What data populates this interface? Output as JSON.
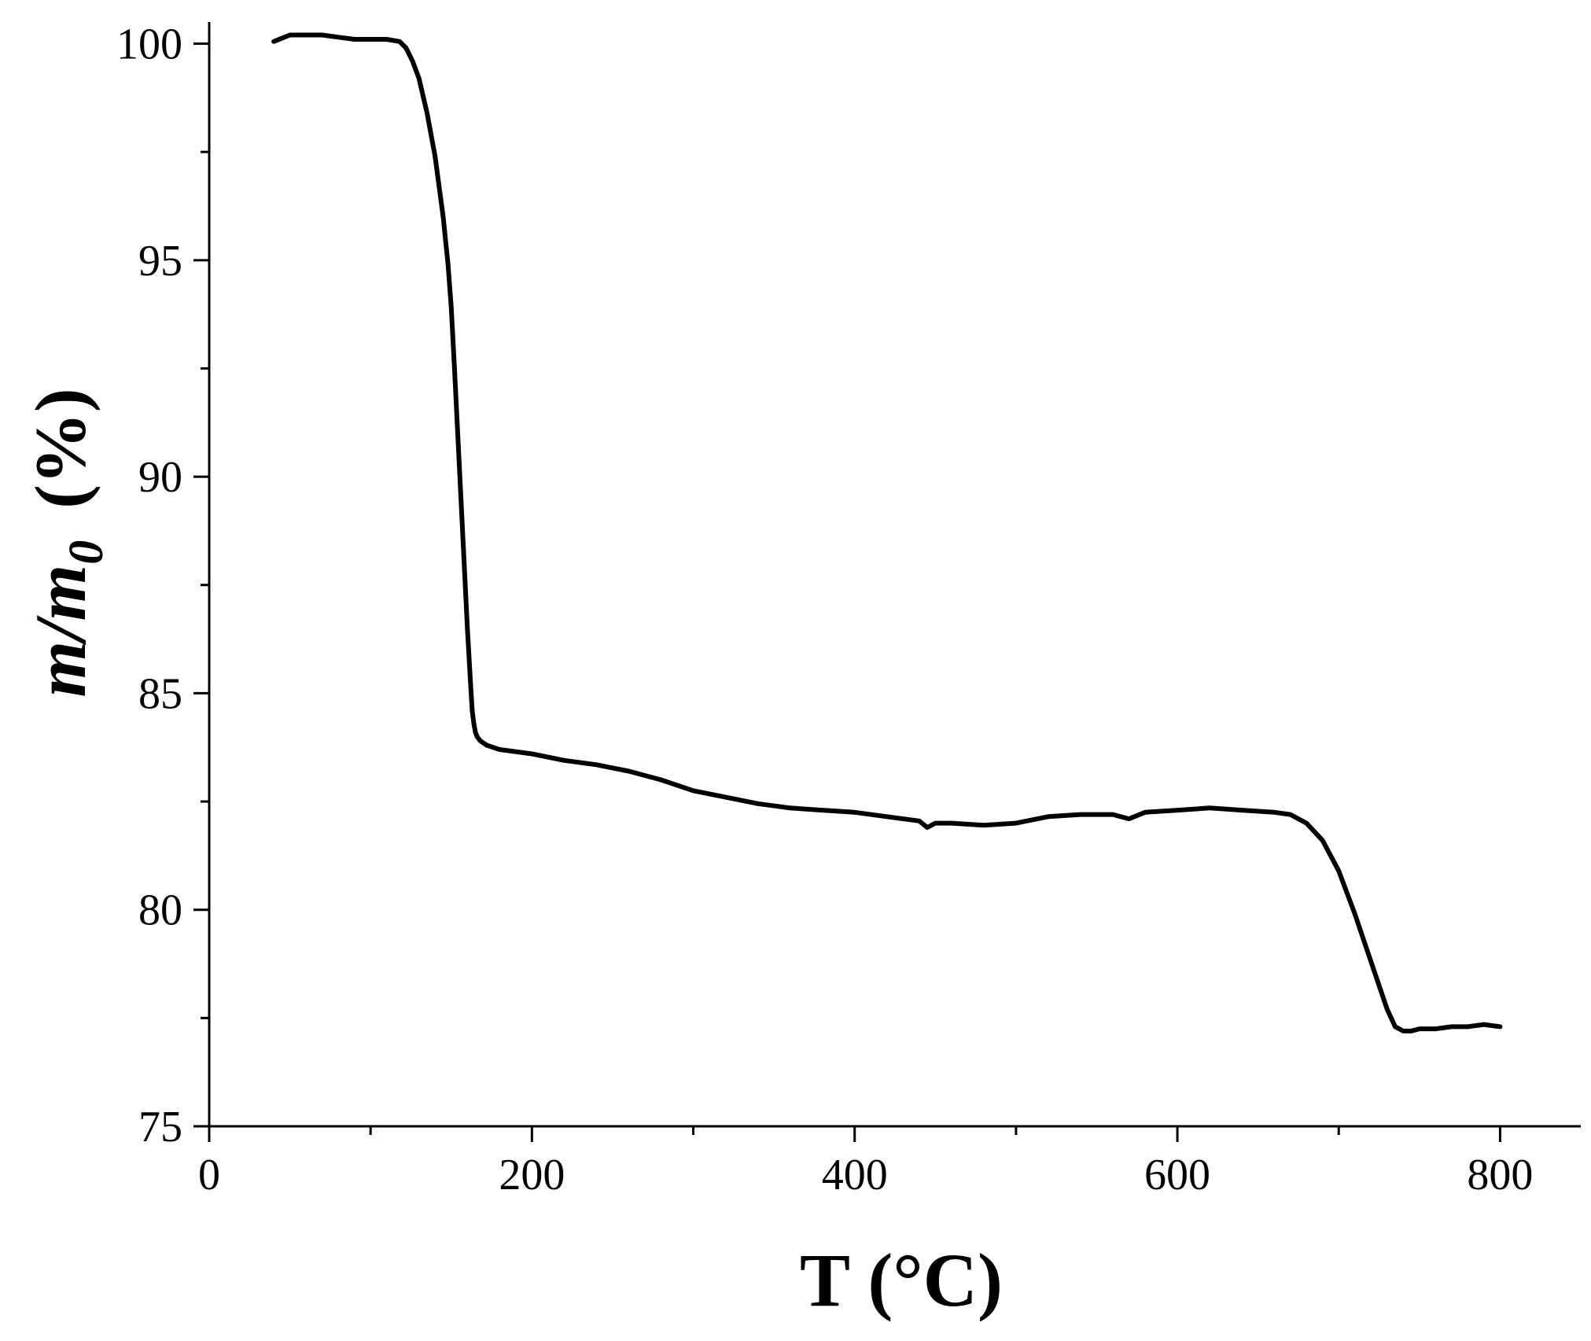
{
  "chart_data": {
    "type": "line",
    "xlabel": "T (°C)",
    "ylabel_main": "m/m",
    "ylabel_sub": "0",
    "ylabel_unit": "(%)",
    "xlim": [
      0,
      850
    ],
    "ylim": [
      75,
      100.5
    ],
    "xticks": [
      0,
      200,
      400,
      600,
      800
    ],
    "xticks_minor": [
      100,
      300,
      500,
      700
    ],
    "yticks": [
      75,
      80,
      85,
      90,
      95,
      100
    ],
    "yticks_minor": [
      77.5,
      82.5,
      87.5,
      92.5,
      97.5
    ],
    "grid": false,
    "line_color": "#000000",
    "series": [
      {
        "x": [
          40,
          50,
          60,
          70,
          80,
          90,
          100,
          110,
          118,
          122,
          126,
          130,
          135,
          140,
          145,
          148,
          150,
          152,
          154,
          156,
          158,
          160,
          162,
          163,
          164,
          165,
          166,
          168,
          172,
          180,
          200,
          220,
          240,
          260,
          280,
          300,
          320,
          340,
          360,
          380,
          400,
          420,
          440,
          445,
          450,
          460,
          480,
          500,
          520,
          540,
          560,
          570,
          580,
          600,
          620,
          640,
          660,
          670,
          680,
          690,
          700,
          710,
          720,
          730,
          735,
          740,
          745,
          750,
          760,
          770,
          780,
          790,
          800
        ],
        "y": [
          100.05,
          100.2,
          100.2,
          100.2,
          100.15,
          100.1,
          100.1,
          100.1,
          100.05,
          99.9,
          99.6,
          99.2,
          98.4,
          97.4,
          96.0,
          94.9,
          93.9,
          92.5,
          91.0,
          89.5,
          88.0,
          86.5,
          85.2,
          84.6,
          84.3,
          84.1,
          84.0,
          83.9,
          83.8,
          83.7,
          83.6,
          83.45,
          83.35,
          83.2,
          83.0,
          82.75,
          82.6,
          82.45,
          82.35,
          82.3,
          82.25,
          82.15,
          82.05,
          81.9,
          82.0,
          82.0,
          81.95,
          82.0,
          82.15,
          82.2,
          82.2,
          82.1,
          82.25,
          82.3,
          82.35,
          82.3,
          82.25,
          82.2,
          82.0,
          81.6,
          80.9,
          79.9,
          78.8,
          77.7,
          77.3,
          77.2,
          77.2,
          77.25,
          77.25,
          77.3,
          77.3,
          77.35,
          77.3
        ]
      }
    ]
  }
}
